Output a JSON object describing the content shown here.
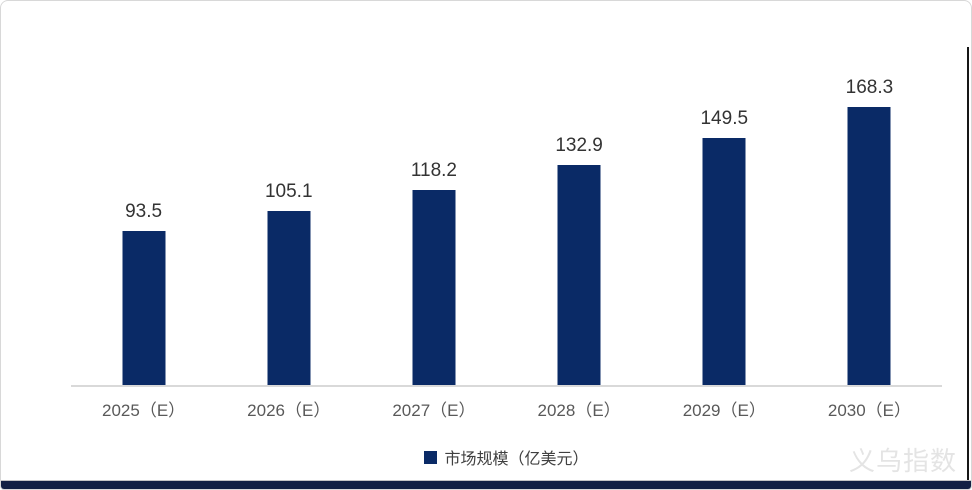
{
  "chart_data": {
    "type": "bar",
    "title": "",
    "categories": [
      "2025（E）",
      "2026（E）",
      "2027（E）",
      "2028（E）",
      "2029（E）",
      "2030（E）"
    ],
    "values": [
      93.5,
      105.1,
      118.2,
      132.9,
      149.5,
      168.3
    ],
    "series_name": "市场规模（亿美元）",
    "xlabel": "",
    "ylabel": "",
    "ylim": [
      0,
      180
    ],
    "grid": false,
    "data_labels": true,
    "legend_position": "bottom"
  },
  "legend": {
    "label": "市场规模（亿美元）"
  },
  "watermark": {
    "text": "义乌指数"
  },
  "colors": {
    "bar": "#0A2A66",
    "axis_line": "#D9D9D9",
    "value_label": "#333333",
    "category_label": "#595959",
    "legend_text": "#404040",
    "watermark": "#E4E4E4",
    "bottom_bar": "#122043",
    "right_edge": "#161616",
    "card_border": "#D8D8D8"
  }
}
